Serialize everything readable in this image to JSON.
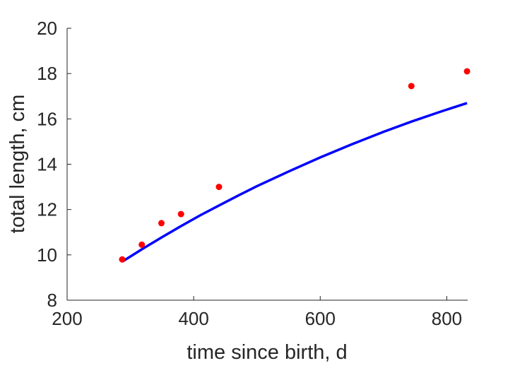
{
  "chart_data": {
    "type": "scatter",
    "xlabel": "time since birth, d",
    "ylabel": "total length, cm",
    "xlim": [
      200,
      830
    ],
    "ylim": [
      8,
      20
    ],
    "x_ticks": [
      200,
      400,
      600,
      800
    ],
    "y_ticks": [
      8,
      10,
      12,
      14,
      16,
      18,
      20
    ],
    "grid": false,
    "series": [
      {
        "kind": "points",
        "color": "#ff0000",
        "points": [
          {
            "x": 287,
            "y": 9.8
          },
          {
            "x": 318,
            "y": 10.45
          },
          {
            "x": 349,
            "y": 11.4
          },
          {
            "x": 380,
            "y": 11.8
          },
          {
            "x": 440,
            "y": 13.0
          },
          {
            "x": 744,
            "y": 17.45
          },
          {
            "x": 832,
            "y": 18.1
          }
        ]
      },
      {
        "kind": "line",
        "color": "#0000ff",
        "points": [
          {
            "x": 287,
            "y": 9.7
          },
          {
            "x": 320,
            "y": 10.28
          },
          {
            "x": 350,
            "y": 10.78
          },
          {
            "x": 380,
            "y": 11.27
          },
          {
            "x": 410,
            "y": 11.74
          },
          {
            "x": 440,
            "y": 12.18
          },
          {
            "x": 470,
            "y": 12.61
          },
          {
            "x": 500,
            "y": 13.03
          },
          {
            "x": 550,
            "y": 13.68
          },
          {
            "x": 600,
            "y": 14.3
          },
          {
            "x": 650,
            "y": 14.88
          },
          {
            "x": 700,
            "y": 15.43
          },
          {
            "x": 744,
            "y": 15.88
          },
          {
            "x": 790,
            "y": 16.32
          },
          {
            "x": 832,
            "y": 16.7
          }
        ]
      }
    ]
  }
}
